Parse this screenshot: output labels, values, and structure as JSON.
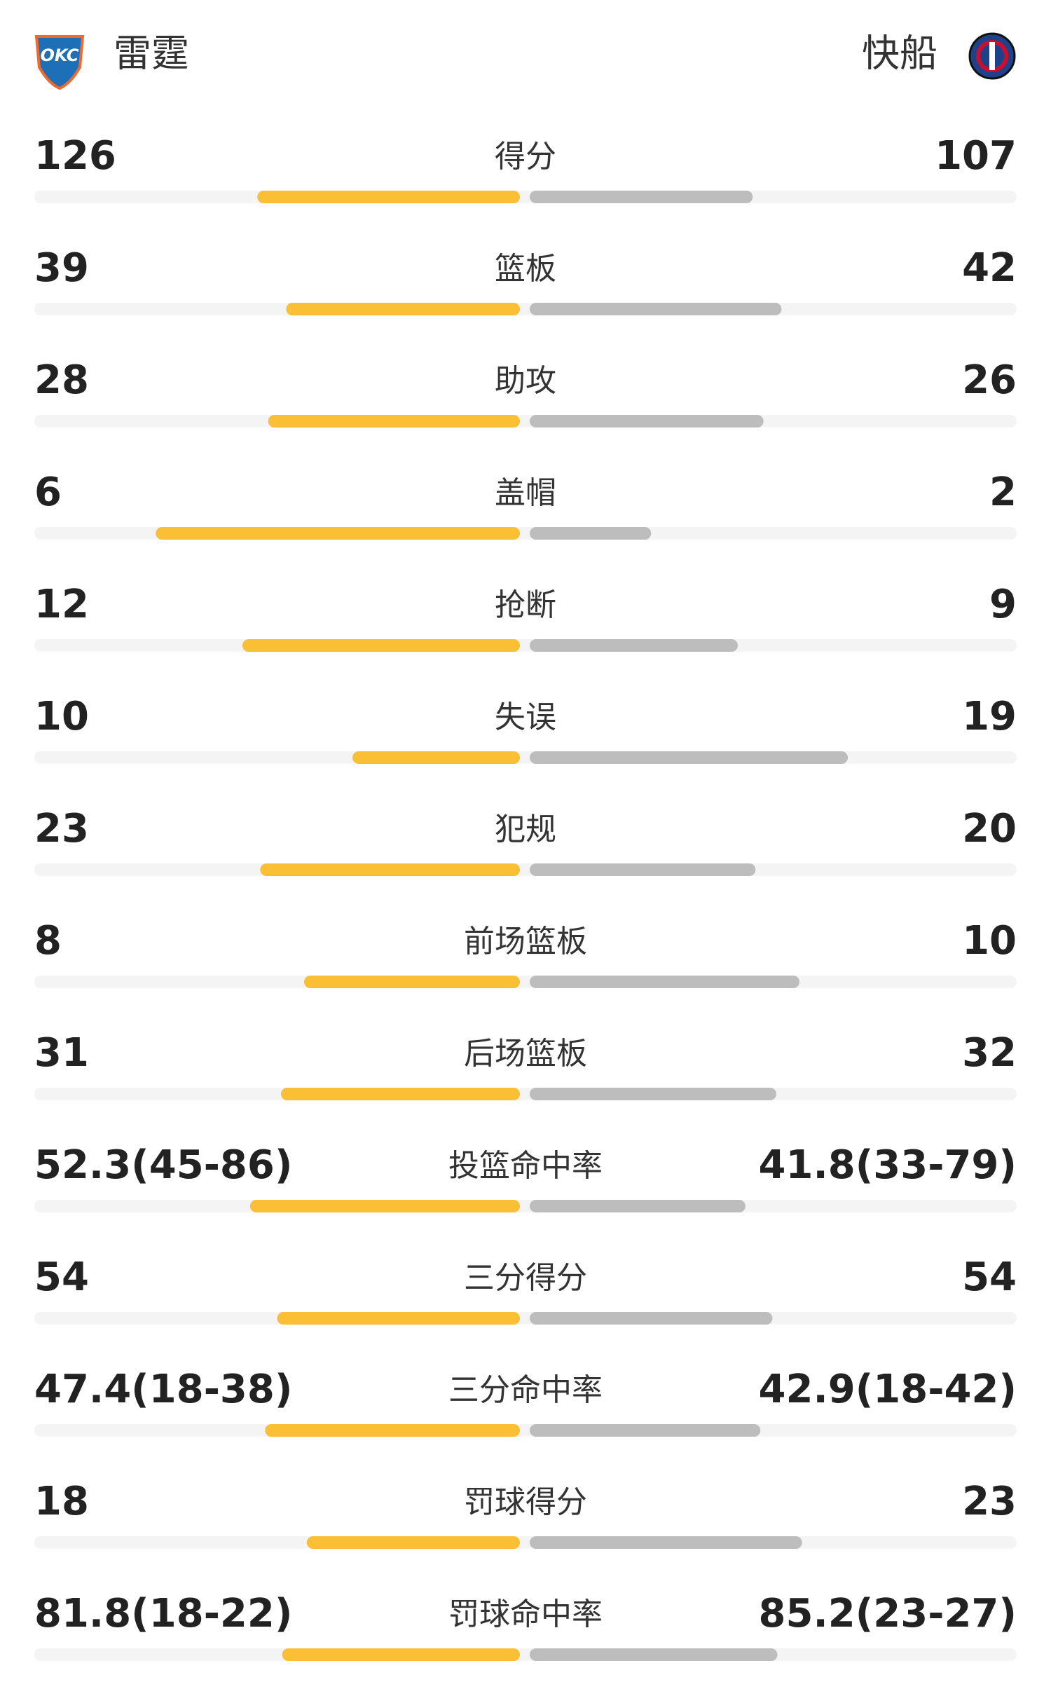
{
  "header": {
    "home_team": "雷霆",
    "away_team": "快船",
    "home_logo": "OKC"
  },
  "rows": [
    {
      "label": "得分",
      "home": 126,
      "away": 107
    },
    {
      "label": "篮板",
      "home": 39,
      "away": 42
    },
    {
      "label": "助攻",
      "home": 28,
      "away": 26
    },
    {
      "label": "盖帽",
      "home": 6,
      "away": 2
    },
    {
      "label": "抢断",
      "home": 12,
      "away": 9
    },
    {
      "label": "失误",
      "home": 10,
      "away": 19
    },
    {
      "label": "犯规",
      "home": 23,
      "away": 20
    },
    {
      "label": "前场篮板",
      "home": 8,
      "away": 10
    },
    {
      "label": "后场篮板",
      "home": 31,
      "away": 32
    },
    {
      "label": "投篮命中率",
      "home": {
        "value": 52.3,
        "label": "52.3(45-86)"
      },
      "away": {
        "value": 41.8,
        "label": "41.8(33-79)"
      }
    },
    {
      "label": "三分得分",
      "home": 54,
      "away": 54
    },
    {
      "label": "三分命中率",
      "home": {
        "value": 47.4,
        "label": "47.4(18-38)"
      },
      "away": {
        "value": 42.9,
        "label": "42.9(18-42)"
      }
    },
    {
      "label": "罚球得分",
      "home": 18,
      "away": 23
    },
    {
      "label": "罚球命中率",
      "home": {
        "value": 81.8,
        "label": "81.8(18-22)"
      },
      "away": {
        "value": 85.2,
        "label": "85.2(23-27)"
      }
    }
  ],
  "colors": {
    "home": "#fbbf35",
    "away": "#bdbdbd",
    "track": "#f4f4f4"
  }
}
